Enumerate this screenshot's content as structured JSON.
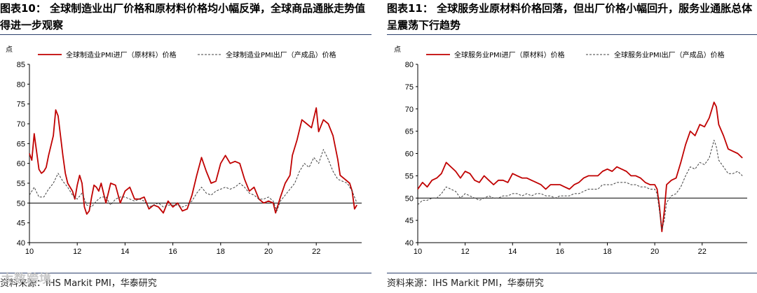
{
  "watermark": "大数跨境",
  "chart_data": [
    {
      "type": "line",
      "title": "图表10： 全球制造业出厂价格和原材料价格均小幅反弹，全球商品通胀走势值得进一步观察",
      "source": "资料来源：IHS Markit PMI，华泰研究",
      "unit": "点",
      "ylim": [
        40,
        85
      ],
      "yticks": [
        40,
        45,
        50,
        55,
        60,
        65,
        70,
        75,
        80,
        85
      ],
      "xlim": [
        2010,
        2023.9
      ],
      "xticks": [
        2010,
        2012,
        2014,
        2016,
        2018,
        2020,
        2022
      ],
      "xtick_labels": [
        "10",
        "12",
        "14",
        "16",
        "18",
        "20",
        "22"
      ],
      "reference_line": 50,
      "legend_position": "top",
      "series": [
        {
          "name": "全球制造业PMI进厂（原材料）价格",
          "color": "#c00000",
          "style": "solid",
          "x": [
            2010.0,
            2010.1,
            2010.2,
            2010.3,
            2010.4,
            2010.5,
            2010.6,
            2010.7,
            2010.8,
            2010.9,
            2011.0,
            2011.1,
            2011.2,
            2011.3,
            2011.4,
            2011.5,
            2011.6,
            2011.7,
            2011.8,
            2011.9,
            2012.0,
            2012.1,
            2012.2,
            2012.3,
            2012.4,
            2012.5,
            2012.6,
            2012.7,
            2012.8,
            2012.9,
            2013.0,
            2013.2,
            2013.4,
            2013.6,
            2013.8,
            2014.0,
            2014.2,
            2014.4,
            2014.6,
            2014.8,
            2015.0,
            2015.2,
            2015.4,
            2015.6,
            2015.8,
            2016.0,
            2016.2,
            2016.4,
            2016.6,
            2016.8,
            2017.0,
            2017.2,
            2017.4,
            2017.6,
            2017.8,
            2018.0,
            2018.2,
            2018.4,
            2018.6,
            2018.8,
            2019.0,
            2019.2,
            2019.4,
            2019.6,
            2019.8,
            2020.0,
            2020.2,
            2020.3,
            2020.5,
            2020.7,
            2020.9,
            2021.0,
            2021.2,
            2021.4,
            2021.6,
            2021.8,
            2022.0,
            2022.1,
            2022.3,
            2022.5,
            2022.7,
            2022.9,
            2023.0,
            2023.2,
            2023.4,
            2023.5,
            2023.6,
            2023.7
          ],
          "y": [
            62.5,
            60.8,
            67.5,
            63.0,
            58.5,
            57.5,
            58.0,
            59.0,
            62.0,
            64.5,
            67.0,
            73.5,
            72.0,
            67.0,
            62.0,
            57.5,
            55.0,
            54.0,
            53.0,
            51.0,
            54.5,
            57.0,
            55.0,
            49.0,
            47.2,
            48.0,
            51.5,
            54.5,
            54.0,
            53.0,
            55.0,
            50.0,
            55.0,
            54.5,
            50.0,
            53.0,
            54.0,
            51.0,
            51.0,
            51.5,
            48.5,
            49.5,
            49.0,
            47.5,
            50.5,
            49.0,
            50.0,
            48.0,
            48.5,
            52.0,
            57.0,
            61.5,
            58.0,
            55.0,
            55.5,
            60.0,
            62.0,
            60.0,
            60.5,
            60.0,
            56.0,
            53.0,
            54.0,
            51.0,
            50.0,
            50.5,
            50.0,
            47.5,
            51.5,
            55.0,
            57.0,
            62.0,
            66.0,
            71.0,
            70.0,
            69.0,
            74.0,
            68.0,
            71.0,
            70.0,
            67.0,
            61.0,
            57.0,
            56.0,
            55.0,
            53.0,
            48.5,
            49.5
          ]
        },
        {
          "name": "全球制造业PMI出厂（产成品）价格",
          "color": "#404040",
          "style": "dashed",
          "x": [
            2010.0,
            2010.2,
            2010.4,
            2010.6,
            2010.8,
            2011.0,
            2011.2,
            2011.4,
            2011.6,
            2011.8,
            2012.0,
            2012.2,
            2012.4,
            2012.6,
            2012.8,
            2013.0,
            2013.2,
            2013.4,
            2013.6,
            2013.8,
            2014.0,
            2014.2,
            2014.4,
            2014.6,
            2014.8,
            2015.0,
            2015.2,
            2015.4,
            2015.6,
            2015.8,
            2016.0,
            2016.2,
            2016.4,
            2016.6,
            2016.8,
            2017.0,
            2017.2,
            2017.4,
            2017.6,
            2017.8,
            2018.0,
            2018.2,
            2018.4,
            2018.6,
            2018.8,
            2019.0,
            2019.2,
            2019.4,
            2019.6,
            2019.8,
            2020.0,
            2020.2,
            2020.35,
            2020.5,
            2020.7,
            2020.9,
            2021.1,
            2021.3,
            2021.5,
            2021.7,
            2021.9,
            2022.1,
            2022.3,
            2022.5,
            2022.7,
            2022.9,
            2023.1,
            2023.3,
            2023.5,
            2023.7
          ],
          "y": [
            52.0,
            54.0,
            51.5,
            51.5,
            53.5,
            55.0,
            57.5,
            55.5,
            54.0,
            52.0,
            51.0,
            52.5,
            49.5,
            49.0,
            50.5,
            51.5,
            51.5,
            49.5,
            51.0,
            51.5,
            51.5,
            51.0,
            50.5,
            51.0,
            50.5,
            49.0,
            49.5,
            50.0,
            49.0,
            49.5,
            49.5,
            49.5,
            49.0,
            49.5,
            50.5,
            52.5,
            54.0,
            52.5,
            52.0,
            53.0,
            53.5,
            54.0,
            53.5,
            54.0,
            55.0,
            54.0,
            52.5,
            52.0,
            51.0,
            51.0,
            51.5,
            50.5,
            48.0,
            50.5,
            52.0,
            53.5,
            55.0,
            58.0,
            60.0,
            59.0,
            61.5,
            60.0,
            63.5,
            61.0,
            58.0,
            56.0,
            55.5,
            55.0,
            53.0,
            50.0
          ]
        }
      ]
    },
    {
      "type": "line",
      "title": "图表11： 全球服务业原材料价格回落，但出厂价格小幅回升，服务业通胀总体呈震荡下行趋势",
      "source": "资料来源：IHS Markit PMI，华泰研究",
      "unit": "点",
      "ylim": [
        40,
        80
      ],
      "yticks": [
        40,
        45,
        50,
        55,
        60,
        65,
        70,
        75,
        80
      ],
      "xlim": [
        2010,
        2023.9
      ],
      "xticks": [
        2010,
        2012,
        2014,
        2016,
        2018,
        2020,
        2022
      ],
      "xtick_labels": [
        "10",
        "12",
        "14",
        "16",
        "18",
        "20",
        "22"
      ],
      "reference_line": 50,
      "legend_position": "top",
      "series": [
        {
          "name": "全球服务业PMI进厂（原材料）价格",
          "color": "#c00000",
          "style": "solid",
          "x": [
            2010.0,
            2010.2,
            2010.4,
            2010.6,
            2010.8,
            2011.0,
            2011.2,
            2011.4,
            2011.6,
            2011.8,
            2012.0,
            2012.2,
            2012.4,
            2012.6,
            2012.8,
            2013.0,
            2013.2,
            2013.4,
            2013.6,
            2013.8,
            2014.0,
            2014.2,
            2014.4,
            2014.6,
            2014.8,
            2015.0,
            2015.2,
            2015.4,
            2015.6,
            2015.8,
            2016.0,
            2016.2,
            2016.4,
            2016.6,
            2016.8,
            2017.0,
            2017.2,
            2017.4,
            2017.6,
            2017.8,
            2018.0,
            2018.2,
            2018.4,
            2018.6,
            2018.8,
            2019.0,
            2019.2,
            2019.4,
            2019.6,
            2019.8,
            2020.0,
            2020.1,
            2020.2,
            2020.3,
            2020.4,
            2020.5,
            2020.7,
            2020.9,
            2021.1,
            2021.3,
            2021.5,
            2021.7,
            2021.9,
            2022.1,
            2022.3,
            2022.5,
            2022.6,
            2022.7,
            2022.9,
            2023.1,
            2023.3,
            2023.5,
            2023.7
          ],
          "y": [
            52.0,
            53.5,
            52.5,
            54.0,
            54.5,
            55.5,
            58.0,
            57.0,
            56.0,
            54.5,
            56.0,
            55.5,
            54.0,
            53.5,
            55.0,
            54.0,
            53.0,
            54.0,
            54.0,
            53.5,
            55.5,
            55.0,
            54.5,
            54.5,
            54.0,
            53.5,
            53.0,
            52.0,
            53.0,
            53.0,
            53.0,
            52.5,
            52.0,
            53.0,
            53.5,
            54.5,
            55.0,
            55.0,
            55.0,
            56.0,
            56.5,
            56.0,
            57.0,
            56.5,
            56.0,
            55.0,
            55.0,
            54.5,
            53.5,
            53.0,
            53.0,
            52.0,
            48.0,
            42.5,
            47.0,
            53.0,
            54.0,
            54.5,
            58.0,
            62.0,
            65.0,
            64.0,
            66.5,
            66.0,
            68.0,
            71.5,
            70.5,
            66.5,
            64.0,
            61.0,
            60.5,
            60.0,
            59.0
          ]
        },
        {
          "name": "全球服务业PMI出厂（产成品）价格",
          "color": "#404040",
          "style": "dashed",
          "x": [
            2010.0,
            2010.2,
            2010.4,
            2010.6,
            2010.8,
            2011.0,
            2011.2,
            2011.4,
            2011.6,
            2011.8,
            2012.0,
            2012.2,
            2012.4,
            2012.6,
            2012.8,
            2013.0,
            2013.2,
            2013.4,
            2013.6,
            2013.8,
            2014.0,
            2014.2,
            2014.4,
            2014.6,
            2014.8,
            2015.0,
            2015.2,
            2015.4,
            2015.6,
            2015.8,
            2016.0,
            2016.2,
            2016.4,
            2016.6,
            2016.8,
            2017.0,
            2017.2,
            2017.4,
            2017.6,
            2017.8,
            2018.0,
            2018.2,
            2018.4,
            2018.6,
            2018.8,
            2019.0,
            2019.2,
            2019.4,
            2019.6,
            2019.8,
            2020.0,
            2020.1,
            2020.2,
            2020.3,
            2020.4,
            2020.5,
            2020.7,
            2020.9,
            2021.1,
            2021.3,
            2021.5,
            2021.7,
            2021.9,
            2022.1,
            2022.3,
            2022.5,
            2022.6,
            2022.7,
            2022.9,
            2023.1,
            2023.3,
            2023.5,
            2023.7
          ],
          "y": [
            48.5,
            49.5,
            49.5,
            50.0,
            50.0,
            51.0,
            52.5,
            52.0,
            51.5,
            50.0,
            51.0,
            50.5,
            50.0,
            49.5,
            50.0,
            50.5,
            50.0,
            50.0,
            50.5,
            50.5,
            51.0,
            51.0,
            50.5,
            51.0,
            50.5,
            51.0,
            51.0,
            50.5,
            50.5,
            50.0,
            50.5,
            50.5,
            50.5,
            51.0,
            51.0,
            51.5,
            52.0,
            52.0,
            52.0,
            53.0,
            53.0,
            53.0,
            53.5,
            53.5,
            53.5,
            53.0,
            53.0,
            52.5,
            52.5,
            52.0,
            52.0,
            51.0,
            47.0,
            43.0,
            45.0,
            49.0,
            50.5,
            51.0,
            52.5,
            55.0,
            57.0,
            56.5,
            58.0,
            57.5,
            59.0,
            63.0,
            61.5,
            58.5,
            57.0,
            55.5,
            55.5,
            56.0,
            55.0
          ]
        }
      ]
    }
  ]
}
